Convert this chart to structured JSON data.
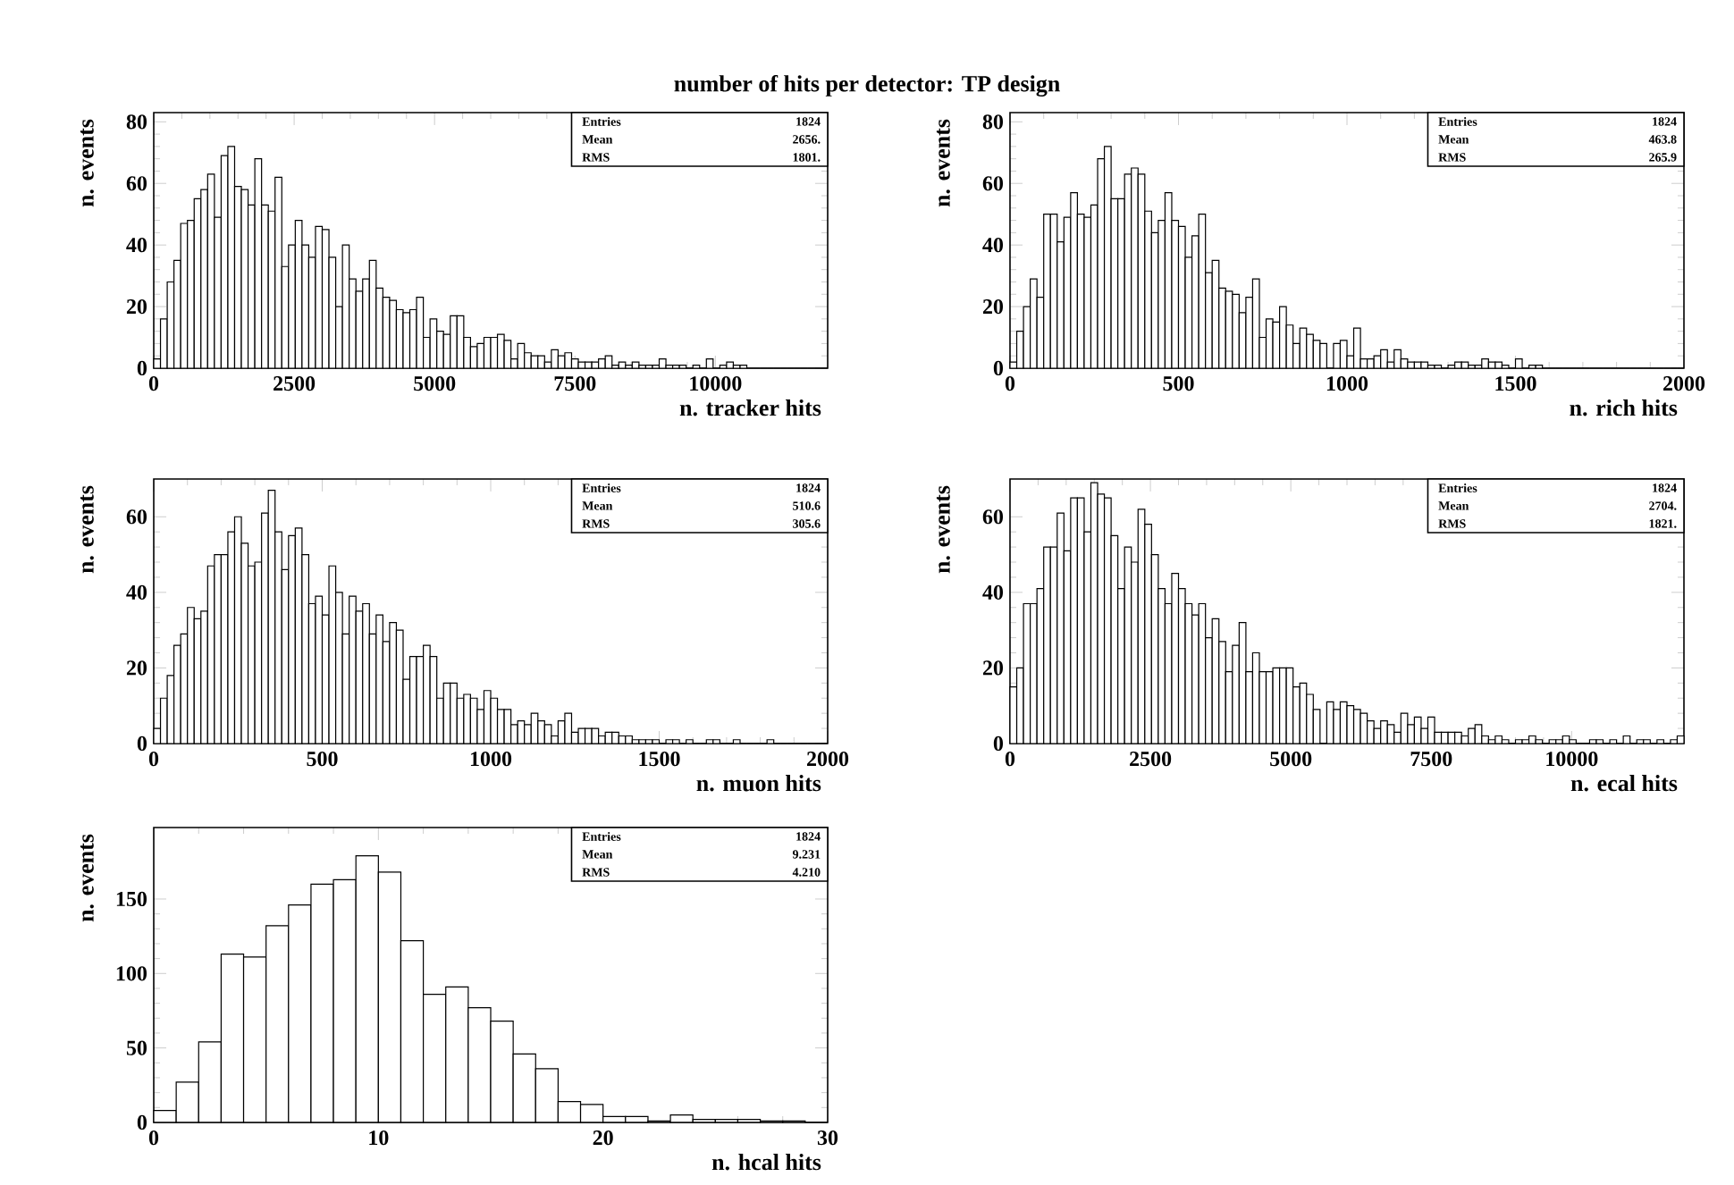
{
  "chart_data": [
    {
      "type": "histogram",
      "title": "number of hits per detector: TP design",
      "xlabel": "n. tracker hits",
      "ylabel": "n. events",
      "color": "#000000",
      "bins": [
        0,
        120,
        240,
        360,
        480,
        600,
        720,
        840,
        960,
        1080,
        1200,
        1320,
        1440,
        1560,
        1680,
        1800,
        1920,
        2040,
        2160,
        2280,
        2400,
        2520,
        2640,
        2760,
        2880,
        3000,
        3120,
        3240,
        3360,
        3480,
        3600,
        3720,
        3840,
        3960,
        4080,
        4200,
        4320,
        4440,
        4560,
        4680,
        4800,
        4920,
        5040,
        5160,
        5280,
        5400,
        5520,
        5640,
        5760,
        5880,
        6000,
        6120,
        6240,
        6360,
        6480,
        6600,
        6720,
        6840,
        6960,
        7080,
        7200,
        7320,
        7440,
        7560,
        7680,
        7800,
        7920,
        8040,
        8160,
        8280,
        8400,
        8520,
        8640,
        8760,
        8880,
        9000,
        9120,
        9240,
        9360,
        9480,
        9600,
        9720,
        9840,
        9960,
        10080,
        10200,
        10320,
        10440,
        10560,
        10680,
        10800,
        10920,
        11040,
        11160,
        11280,
        11400,
        11520,
        11640,
        11760,
        11880,
        12000
      ],
      "values": [
        3,
        16,
        28,
        35,
        47,
        48,
        55,
        58,
        63,
        49,
        69,
        72,
        59,
        58,
        53,
        68,
        53,
        51,
        62,
        33,
        40,
        48,
        40,
        36,
        46,
        45,
        36,
        20,
        40,
        29,
        25,
        29,
        35,
        26,
        23,
        22,
        19,
        18,
        19,
        23,
        10,
        16,
        12,
        11,
        17,
        17,
        10,
        7,
        8,
        10,
        10,
        11,
        9,
        3,
        8,
        5,
        4,
        4,
        2,
        6,
        4,
        5,
        3,
        2,
        2,
        2,
        3,
        4,
        1,
        2,
        1,
        2,
        1,
        1,
        1,
        3,
        1,
        1,
        1,
        0,
        1,
        0,
        3,
        0,
        1,
        2,
        1,
        1,
        0,
        0,
        0,
        0,
        0,
        0,
        0,
        0,
        0,
        0,
        0,
        0
      ],
      "xlim": [
        0,
        12000
      ],
      "ylim": [
        0,
        83
      ],
      "xticks": [
        0,
        2500,
        5000,
        7500,
        10000
      ],
      "yticks": [
        0,
        20,
        40,
        60,
        80
      ],
      "annotations": [
        "Entries",
        "1824",
        "Mean",
        "2656.",
        "RMS",
        "1801."
      ]
    },
    {
      "type": "histogram",
      "xlabel": "n. rich hits",
      "ylabel": "n. events",
      "color": "#000000",
      "bins": [
        0,
        20,
        40,
        60,
        80,
        100,
        120,
        140,
        160,
        180,
        200,
        220,
        240,
        260,
        280,
        300,
        320,
        340,
        360,
        380,
        400,
        420,
        440,
        460,
        480,
        500,
        520,
        540,
        560,
        580,
        600,
        620,
        640,
        660,
        680,
        700,
        720,
        740,
        760,
        780,
        800,
        820,
        840,
        860,
        880,
        900,
        920,
        940,
        960,
        980,
        1000,
        1020,
        1040,
        1060,
        1080,
        1100,
        1120,
        1140,
        1160,
        1180,
        1200,
        1220,
        1240,
        1260,
        1280,
        1300,
        1320,
        1340,
        1360,
        1380,
        1400,
        1420,
        1440,
        1460,
        1480,
        1500,
        1520,
        1540,
        1560,
        1580,
        1600,
        1620,
        1640,
        1660,
        1680,
        1700,
        1720,
        1740,
        1760,
        1780,
        1800,
        1820,
        1840,
        1860,
        1880,
        1900,
        1920,
        1940,
        1960,
        1980,
        2000
      ],
      "values": [
        2,
        12,
        20,
        29,
        23,
        50,
        50,
        41,
        49,
        57,
        50,
        49,
        53,
        68,
        72,
        55,
        55,
        63,
        65,
        63,
        51,
        44,
        48,
        57,
        48,
        46,
        36,
        43,
        50,
        31,
        35,
        26,
        25,
        24,
        18,
        23,
        29,
        10,
        16,
        15,
        20,
        14,
        8,
        13,
        11,
        9,
        8,
        0,
        8,
        9,
        4,
        13,
        3,
        3,
        4,
        6,
        2,
        6,
        3,
        2,
        2,
        2,
        1,
        1,
        0,
        1,
        2,
        2,
        1,
        1,
        3,
        2,
        2,
        1,
        0,
        3,
        0,
        1,
        1,
        0,
        0,
        0,
        0,
        0,
        0,
        0,
        0,
        0,
        0,
        0,
        0,
        0,
        0,
        0,
        0,
        0,
        0,
        0,
        0,
        0
      ],
      "xlim": [
        0,
        2000
      ],
      "ylim": [
        0,
        83
      ],
      "xticks": [
        0,
        500,
        1000,
        1500,
        2000
      ],
      "yticks": [
        0,
        20,
        40,
        60,
        80
      ],
      "annotations": [
        "Entries",
        "1824",
        "Mean",
        "463.8",
        "RMS",
        "265.9"
      ]
    },
    {
      "type": "histogram",
      "xlabel": "n. muon hits",
      "ylabel": "n. events",
      "color": "#000000",
      "bins": [
        0,
        20,
        40,
        60,
        80,
        100,
        120,
        140,
        160,
        180,
        200,
        220,
        240,
        260,
        280,
        300,
        320,
        340,
        360,
        380,
        400,
        420,
        440,
        460,
        480,
        500,
        520,
        540,
        560,
        580,
        600,
        620,
        640,
        660,
        680,
        700,
        720,
        740,
        760,
        780,
        800,
        820,
        840,
        860,
        880,
        900,
        920,
        940,
        960,
        980,
        1000,
        1020,
        1040,
        1060,
        1080,
        1100,
        1120,
        1140,
        1160,
        1180,
        1200,
        1220,
        1240,
        1260,
        1280,
        1300,
        1320,
        1340,
        1360,
        1380,
        1400,
        1420,
        1440,
        1460,
        1480,
        1500,
        1520,
        1540,
        1560,
        1580,
        1600,
        1620,
        1640,
        1660,
        1680,
        1700,
        1720,
        1740,
        1760,
        1780,
        1800,
        1820,
        1840,
        1860,
        1880,
        1900,
        1920,
        1940,
        1960,
        1980,
        2000
      ],
      "values": [
        4,
        12,
        18,
        26,
        29,
        36,
        33,
        35,
        47,
        50,
        50,
        56,
        60,
        53,
        47,
        48,
        61,
        67,
        56,
        46,
        55,
        57,
        50,
        37,
        39,
        34,
        47,
        40,
        29,
        39,
        35,
        37,
        29,
        34,
        27,
        32,
        30,
        17,
        23,
        23,
        26,
        23,
        12,
        16,
        16,
        12,
        13,
        12,
        9,
        14,
        12,
        9,
        9,
        5,
        6,
        5,
        8,
        6,
        5,
        2,
        6,
        8,
        3,
        4,
        4,
        4,
        2,
        3,
        3,
        2,
        2,
        1,
        1,
        1,
        1,
        0,
        1,
        1,
        0,
        1,
        0,
        0,
        1,
        1,
        0,
        0,
        1,
        0,
        0,
        0,
        0,
        1,
        0,
        0,
        0,
        0,
        0,
        0,
        0,
        0
      ],
      "xlim": [
        0,
        2000
      ],
      "ylim": [
        0,
        70
      ],
      "xticks": [
        0,
        500,
        1000,
        1500,
        2000
      ],
      "yticks": [
        0,
        20,
        40,
        60
      ],
      "annotations": [
        "Entries",
        "1824",
        "Mean",
        "510.6",
        "RMS",
        "305.6"
      ]
    },
    {
      "type": "histogram",
      "xlabel": "n. ecal hits",
      "ylabel": "n. events",
      "color": "#000000",
      "bins": [
        0,
        120,
        240,
        360,
        480,
        600,
        720,
        840,
        960,
        1080,
        1200,
        1320,
        1440,
        1560,
        1680,
        1800,
        1920,
        2040,
        2160,
        2280,
        2400,
        2520,
        2640,
        2760,
        2880,
        3000,
        3120,
        3240,
        3360,
        3480,
        3600,
        3720,
        3840,
        3960,
        4080,
        4200,
        4320,
        4440,
        4560,
        4680,
        4800,
        4920,
        5040,
        5160,
        5280,
        5400,
        5520,
        5640,
        5760,
        5880,
        6000,
        6120,
        6240,
        6360,
        6480,
        6600,
        6720,
        6840,
        6960,
        7080,
        7200,
        7320,
        7440,
        7560,
        7680,
        7800,
        7920,
        8040,
        8160,
        8280,
        8400,
        8520,
        8640,
        8760,
        8880,
        9000,
        9120,
        9240,
        9360,
        9480,
        9600,
        9720,
        9840,
        9960,
        10080,
        10200,
        10320,
        10440,
        10560,
        10680,
        10800,
        10920,
        11040,
        11160,
        11280,
        11400,
        11520,
        11640,
        11760,
        11880,
        12000
      ],
      "values": [
        15,
        20,
        37,
        37,
        41,
        52,
        52,
        61,
        51,
        65,
        65,
        56,
        69,
        66,
        65,
        55,
        41,
        52,
        48,
        62,
        58,
        50,
        41,
        37,
        45,
        41,
        37,
        34,
        37,
        28,
        33,
        27,
        19,
        26,
        32,
        19,
        24,
        19,
        19,
        20,
        20,
        20,
        15,
        16,
        13,
        9,
        0,
        11,
        9,
        11,
        10,
        9,
        8,
        6,
        4,
        6,
        5,
        3,
        8,
        5,
        7,
        4,
        7,
        3,
        3,
        3,
        3,
        2,
        4,
        5,
        2,
        1,
        2,
        1,
        0,
        1,
        1,
        2,
        1,
        0,
        1,
        1,
        2,
        1,
        0,
        0,
        1,
        1,
        0,
        1,
        0,
        2,
        0,
        1,
        1,
        0,
        1,
        0,
        1,
        2
      ],
      "xlim": [
        0,
        12000
      ],
      "ylim": [
        0,
        70
      ],
      "xticks": [
        0,
        2500,
        5000,
        7500,
        10000
      ],
      "yticks": [
        0,
        20,
        40,
        60
      ],
      "annotations": [
        "Entries",
        "1824",
        "Mean",
        "2704.",
        "RMS",
        "1821."
      ]
    },
    {
      "type": "histogram",
      "xlabel": "n. hcal hits",
      "ylabel": "n. events",
      "color": "#000000",
      "bins": [
        0,
        1,
        2,
        3,
        4,
        5,
        6,
        7,
        8,
        9,
        10,
        11,
        12,
        13,
        14,
        15,
        16,
        17,
        18,
        19,
        20,
        21,
        22,
        23,
        24,
        25,
        26,
        27,
        28,
        29,
        30
      ],
      "values": [
        8,
        27,
        54,
        113,
        111,
        132,
        146,
        160,
        163,
        179,
        168,
        122,
        86,
        91,
        77,
        68,
        46,
        36,
        14,
        12,
        4,
        4,
        1,
        5,
        2,
        2,
        2,
        1,
        1,
        0
      ],
      "xlim": [
        0,
        30
      ],
      "ylim": [
        0,
        198
      ],
      "xticks": [
        0,
        10,
        20,
        30
      ],
      "yticks": [
        0,
        50,
        100,
        150
      ],
      "annotations": [
        "Entries",
        "1824",
        "Mean",
        "9.231",
        "RMS",
        "4.210"
      ]
    }
  ]
}
